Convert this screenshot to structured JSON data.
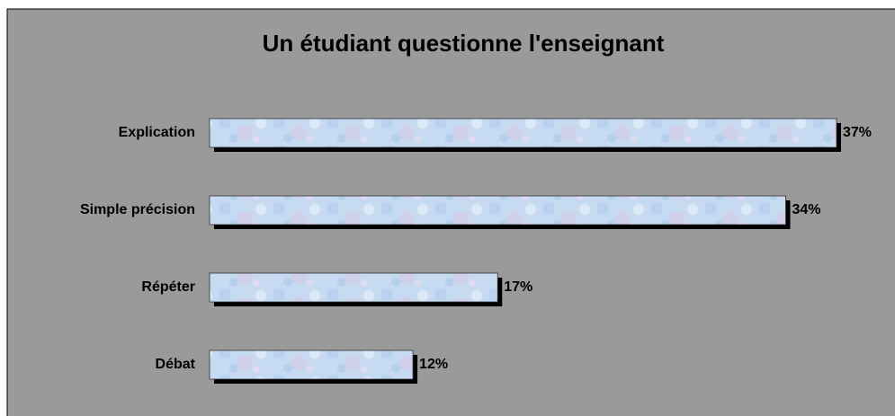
{
  "chart_data": {
    "type": "hbar",
    "title": "Un étudiant questionne l'enseignant",
    "categories": [
      "Explication",
      "Simple précision",
      "Répéter",
      "Débat"
    ],
    "values": [
      37,
      34,
      17,
      12
    ],
    "value_labels": [
      "37%",
      "34%",
      "17%",
      "12%"
    ]
  }
}
